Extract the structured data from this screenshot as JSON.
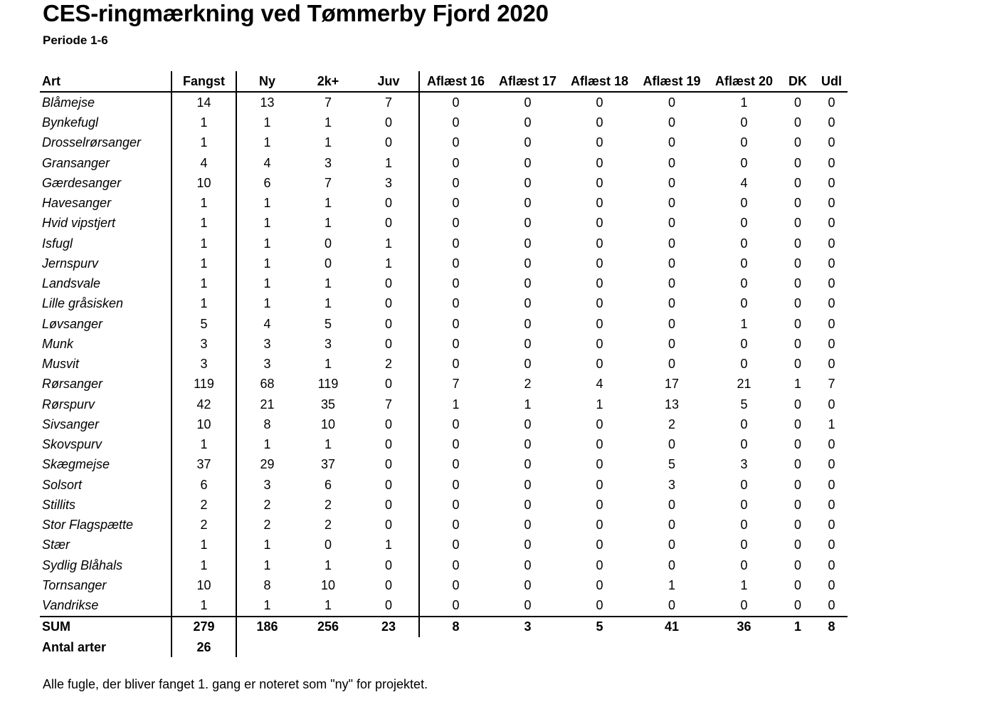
{
  "title": "CES-ringmærkning ved Tømmerby Fjord 2020",
  "subtitle": "Periode 1-6",
  "table": {
    "headers": [
      "Art",
      "Fangst",
      "Ny",
      "2k+",
      "Juv",
      "Aflæst 16",
      "Aflæst 17",
      "Aflæst 18",
      "Aflæst 19",
      "Aflæst 20",
      "DK",
      "Udl"
    ],
    "rows": [
      [
        "Blåmejse",
        "14",
        "13",
        "7",
        "7",
        "0",
        "0",
        "0",
        "0",
        "1",
        "0",
        "0"
      ],
      [
        "Bynkefugl",
        "1",
        "1",
        "1",
        "0",
        "0",
        "0",
        "0",
        "0",
        "0",
        "0",
        "0"
      ],
      [
        "Drosselrørsanger",
        "1",
        "1",
        "1",
        "0",
        "0",
        "0",
        "0",
        "0",
        "0",
        "0",
        "0"
      ],
      [
        "Gransanger",
        "4",
        "4",
        "3",
        "1",
        "0",
        "0",
        "0",
        "0",
        "0",
        "0",
        "0"
      ],
      [
        "Gærdesanger",
        "10",
        "6",
        "7",
        "3",
        "0",
        "0",
        "0",
        "0",
        "4",
        "0",
        "0"
      ],
      [
        "Havesanger",
        "1",
        "1",
        "1",
        "0",
        "0",
        "0",
        "0",
        "0",
        "0",
        "0",
        "0"
      ],
      [
        "Hvid vipstjert",
        "1",
        "1",
        "1",
        "0",
        "0",
        "0",
        "0",
        "0",
        "0",
        "0",
        "0"
      ],
      [
        "Isfugl",
        "1",
        "1",
        "0",
        "1",
        "0",
        "0",
        "0",
        "0",
        "0",
        "0",
        "0"
      ],
      [
        "Jernspurv",
        "1",
        "1",
        "0",
        "1",
        "0",
        "0",
        "0",
        "0",
        "0",
        "0",
        "0"
      ],
      [
        "Landsvale",
        "1",
        "1",
        "1",
        "0",
        "0",
        "0",
        "0",
        "0",
        "0",
        "0",
        "0"
      ],
      [
        "Lille gråsisken",
        "1",
        "1",
        "1",
        "0",
        "0",
        "0",
        "0",
        "0",
        "0",
        "0",
        "0"
      ],
      [
        "Løvsanger",
        "5",
        "4",
        "5",
        "0",
        "0",
        "0",
        "0",
        "0",
        "1",
        "0",
        "0"
      ],
      [
        "Munk",
        "3",
        "3",
        "3",
        "0",
        "0",
        "0",
        "0",
        "0",
        "0",
        "0",
        "0"
      ],
      [
        "Musvit",
        "3",
        "3",
        "1",
        "2",
        "0",
        "0",
        "0",
        "0",
        "0",
        "0",
        "0"
      ],
      [
        "Rørsanger",
        "119",
        "68",
        "119",
        "0",
        "7",
        "2",
        "4",
        "17",
        "21",
        "1",
        "7"
      ],
      [
        "Rørspurv",
        "42",
        "21",
        "35",
        "7",
        "1",
        "1",
        "1",
        "13",
        "5",
        "0",
        "0"
      ],
      [
        "Sivsanger",
        "10",
        "8",
        "10",
        "0",
        "0",
        "0",
        "0",
        "2",
        "0",
        "0",
        "1"
      ],
      [
        "Skovspurv",
        "1",
        "1",
        "1",
        "0",
        "0",
        "0",
        "0",
        "0",
        "0",
        "0",
        "0"
      ],
      [
        "Skægmejse",
        "37",
        "29",
        "37",
        "0",
        "0",
        "0",
        "0",
        "5",
        "3",
        "0",
        "0"
      ],
      [
        "Solsort",
        "6",
        "3",
        "6",
        "0",
        "0",
        "0",
        "0",
        "3",
        "0",
        "0",
        "0"
      ],
      [
        "Stillits",
        "2",
        "2",
        "2",
        "0",
        "0",
        "0",
        "0",
        "0",
        "0",
        "0",
        "0"
      ],
      [
        "Stor Flagspætte",
        "2",
        "2",
        "2",
        "0",
        "0",
        "0",
        "0",
        "0",
        "0",
        "0",
        "0"
      ],
      [
        "Stær",
        "1",
        "1",
        "0",
        "1",
        "0",
        "0",
        "0",
        "0",
        "0",
        "0",
        "0"
      ],
      [
        "Sydlig Blåhals",
        "1",
        "1",
        "1",
        "0",
        "0",
        "0",
        "0",
        "0",
        "0",
        "0",
        "0"
      ],
      [
        "Tornsanger",
        "10",
        "8",
        "10",
        "0",
        "0",
        "0",
        "0",
        "1",
        "1",
        "0",
        "0"
      ],
      [
        "Vandrikse",
        "1",
        "1",
        "1",
        "0",
        "0",
        "0",
        "0",
        "0",
        "0",
        "0",
        "0"
      ]
    ],
    "sum": [
      "SUM",
      "279",
      "186",
      "256",
      "23",
      "8",
      "3",
      "5",
      "41",
      "36",
      "1",
      "8"
    ],
    "antal": [
      "Antal arter",
      "26"
    ]
  },
  "footnote": "Alle fugle, der bliver fanget 1. gang er noteret som \"ny\" for projektet."
}
